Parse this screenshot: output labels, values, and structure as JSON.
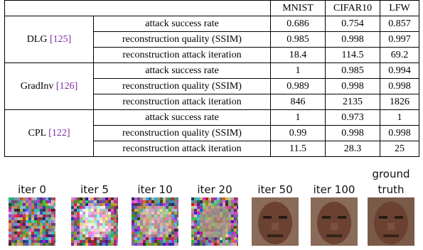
{
  "table": {
    "header": [
      "MNIST",
      "CIFAR10",
      "LFW"
    ],
    "groups": [
      {
        "method": "DLG",
        "ref": "[125]",
        "rows": [
          {
            "metric": "attack success rate",
            "values": [
              "0.686",
              "0.754",
              "0.857"
            ]
          },
          {
            "metric": "reconstruction quality (SSIM)",
            "values": [
              "0.985",
              "0.998",
              "0.997"
            ]
          },
          {
            "metric": "reconstruction attack iteration",
            "values": [
              "18.4",
              "114.5",
              "69.2"
            ]
          }
        ]
      },
      {
        "method": "GradInv",
        "ref": "[126]",
        "rows": [
          {
            "metric": "attack success rate",
            "values": [
              "1",
              "0.985",
              "0.994"
            ]
          },
          {
            "metric": "reconstruction quality (SSIM)",
            "values": [
              "0.989",
              "0.998",
              "0.998"
            ]
          },
          {
            "metric": "reconstruction attack iteration",
            "values": [
              "846",
              "2135",
              "1826"
            ]
          }
        ]
      },
      {
        "method": "CPL",
        "ref": "[122]",
        "rows": [
          {
            "metric": "attack success rate",
            "values": [
              "1",
              "0.973",
              "1"
            ]
          },
          {
            "metric": "reconstruction quality (SSIM)",
            "values": [
              "0.99",
              "0.998",
              "0.998"
            ]
          },
          {
            "metric": "reconstruction attack iteration",
            "values": [
              "11.5",
              "28.3",
              "25"
            ]
          }
        ]
      }
    ]
  },
  "strip": {
    "labels": [
      "iter 0",
      "iter 5",
      "iter 10",
      "iter 20",
      "iter 50",
      "iter 100",
      "ground truth"
    ]
  }
}
